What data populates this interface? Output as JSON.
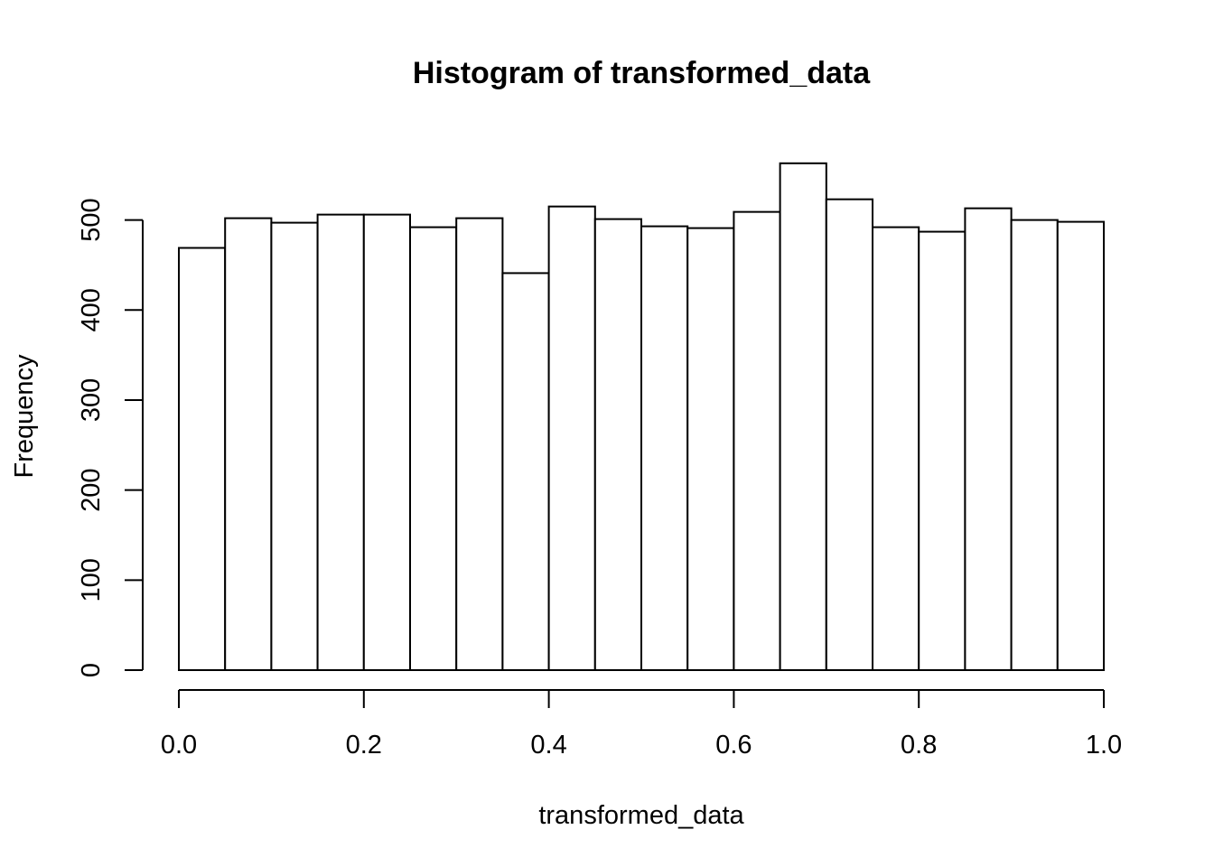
{
  "chart_data": {
    "type": "bar",
    "title": "Histogram of transformed_data",
    "xlabel": "transformed_data",
    "ylabel": "Frequency",
    "bin_edges": [
      0.0,
      0.05,
      0.1,
      0.15,
      0.2,
      0.25,
      0.3,
      0.35,
      0.4,
      0.45,
      0.5,
      0.55,
      0.6,
      0.65,
      0.7,
      0.75,
      0.8,
      0.85,
      0.9,
      0.95,
      1.0
    ],
    "values": [
      469,
      502,
      497,
      506,
      506,
      492,
      502,
      441,
      515,
      501,
      493,
      491,
      509,
      563,
      523,
      492,
      487,
      513,
      500,
      498
    ],
    "xlim": [
      0.0,
      1.0
    ],
    "ylim": [
      0,
      563
    ],
    "x_ticks": [
      "0.0",
      "0.2",
      "0.4",
      "0.6",
      "0.8",
      "1.0"
    ],
    "y_ticks": [
      "0",
      "100",
      "200",
      "300",
      "400",
      "500"
    ],
    "grid": false,
    "legend": "none",
    "bar_fill": "#ffffff",
    "bar_stroke": "#000000"
  }
}
